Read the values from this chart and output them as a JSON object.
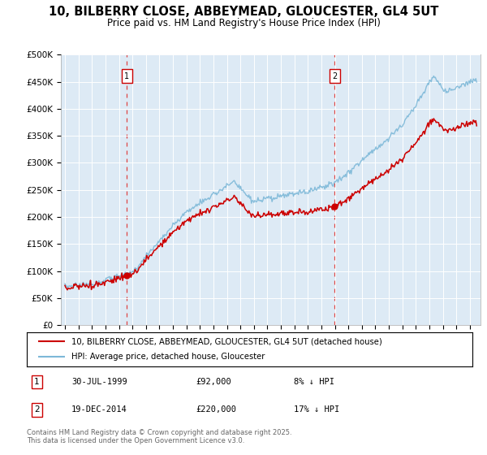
{
  "title": "10, BILBERRY CLOSE, ABBEYMEAD, GLOUCESTER, GL4 5UT",
  "subtitle": "Price paid vs. HM Land Registry's House Price Index (HPI)",
  "hpi_color": "#7db8d8",
  "price_color": "#cc0000",
  "dashed_line_color": "#dd4444",
  "plot_bg": "#ddeaf5",
  "ylim": [
    0,
    500000
  ],
  "yticks": [
    0,
    50000,
    100000,
    150000,
    200000,
    250000,
    300000,
    350000,
    400000,
    450000,
    500000
  ],
  "ytick_labels": [
    "£0",
    "£50K",
    "£100K",
    "£150K",
    "£200K",
    "£250K",
    "£300K",
    "£350K",
    "£400K",
    "£450K",
    "£500K"
  ],
  "xlim_start": 1994.7,
  "xlim_end": 2025.8,
  "sale1_date": 1999.58,
  "sale1_price": 92000,
  "sale1_label": "1",
  "sale2_date": 2014.97,
  "sale2_price": 220000,
  "sale2_label": "2",
  "legend_line1": "10, BILBERRY CLOSE, ABBEYMEAD, GLOUCESTER, GL4 5UT (detached house)",
  "legend_line2": "HPI: Average price, detached house, Gloucester",
  "footnote_line1": "Contains HM Land Registry data © Crown copyright and database right 2025.",
  "footnote_line2": "This data is licensed under the Open Government Licence v3.0.",
  "table": [
    {
      "label": "1",
      "date": "30-JUL-1999",
      "price": "£92,000",
      "hpi": "8% ↓ HPI"
    },
    {
      "label": "2",
      "date": "19-DEC-2014",
      "price": "£220,000",
      "hpi": "17% ↓ HPI"
    }
  ]
}
